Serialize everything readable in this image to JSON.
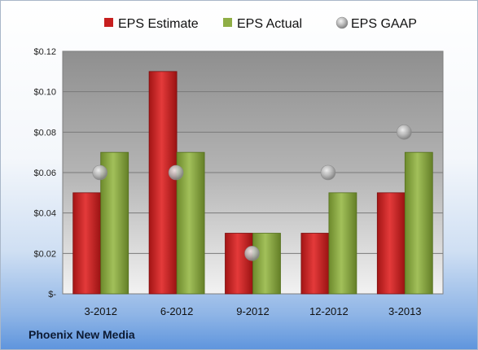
{
  "chart_data": {
    "type": "bar",
    "categories": [
      "3-2012",
      "6-2012",
      "9-2012",
      "12-2012",
      "3-2013"
    ],
    "series": [
      {
        "name": "EPS Estimate",
        "values": [
          0.05,
          0.11,
          0.03,
          0.03,
          0.05
        ],
        "color": "#d42a2a",
        "kind": "bar"
      },
      {
        "name": "EPS Actual",
        "values": [
          0.07,
          0.07,
          0.03,
          0.05,
          0.07
        ],
        "color": "#8fae45",
        "kind": "bar"
      },
      {
        "name": "EPS GAAP",
        "values": [
          0.06,
          0.06,
          0.02,
          0.06,
          0.08
        ],
        "color": "#b8b8b8",
        "kind": "marker"
      }
    ],
    "y_ticks": [
      "$-",
      "$0.02",
      "$0.04",
      "$0.06",
      "$0.08",
      "$0.10",
      "$0.12"
    ],
    "ylim": [
      0,
      0.12
    ],
    "grid": true,
    "legend_position": "top"
  },
  "footer": {
    "company": "Phoenix New Media"
  }
}
